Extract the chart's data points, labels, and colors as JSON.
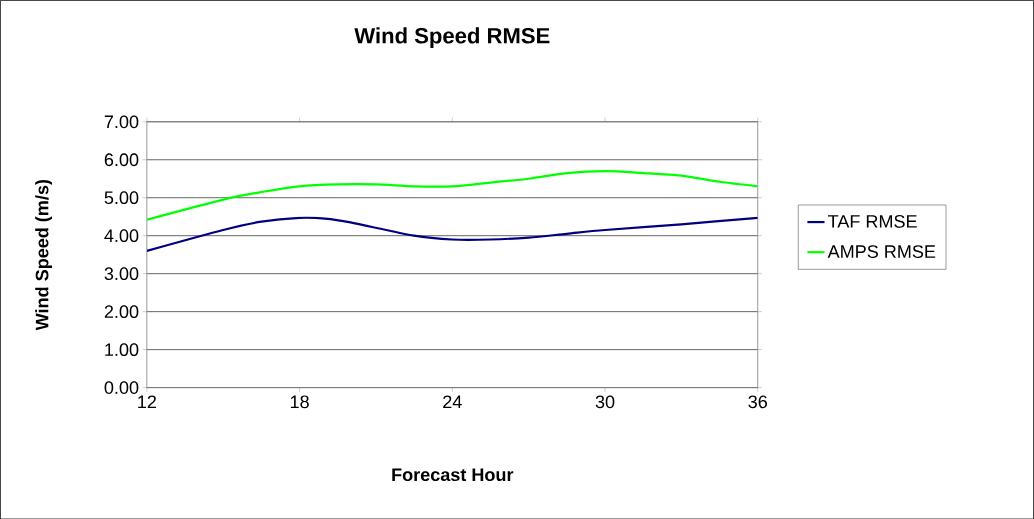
{
  "chart_data": {
    "type": "line",
    "title": "Wind Speed RMSE",
    "xlabel": "Forecast Hour",
    "ylabel": "Wind Speed (m/s)",
    "xlim": [
      12,
      36
    ],
    "xticks": [
      12,
      18,
      24,
      30,
      36
    ],
    "ylim": [
      0,
      7
    ],
    "yticks": [
      {
        "value": 0,
        "label": "0.00"
      },
      {
        "value": 1,
        "label": "1.00"
      },
      {
        "value": 2,
        "label": "2.00"
      },
      {
        "value": 3,
        "label": "3.00"
      },
      {
        "value": 4,
        "label": "4.00"
      },
      {
        "value": 5,
        "label": "5.00"
      },
      {
        "value": 6,
        "label": "6.00"
      },
      {
        "value": 7,
        "label": "7.00"
      }
    ],
    "grid": "y",
    "legend": "right",
    "marker": "none",
    "line_style": "solid",
    "series": [
      {
        "name": "TAF RMSE",
        "color": "#000080",
        "x": [
          12,
          15,
          16.5,
          18,
          19,
          20,
          22.5,
          24,
          25.5,
          27,
          28.5,
          30,
          33,
          36
        ],
        "values": [
          3.6,
          4.15,
          4.37,
          4.47,
          4.45,
          4.35,
          4.0,
          3.9,
          3.9,
          3.95,
          4.05,
          4.15,
          4.3,
          4.47
        ]
      },
      {
        "name": "AMPS RMSE",
        "color": "#00ff00",
        "x": [
          12,
          15,
          16.5,
          18,
          19.5,
          21,
          22.5,
          24,
          25.5,
          27,
          28.5,
          30,
          31.5,
          33,
          34.5,
          36
        ],
        "values": [
          4.42,
          4.95,
          5.15,
          5.3,
          5.35,
          5.35,
          5.3,
          5.3,
          5.4,
          5.5,
          5.65,
          5.7,
          5.65,
          5.58,
          5.42,
          5.3
        ]
      }
    ]
  }
}
